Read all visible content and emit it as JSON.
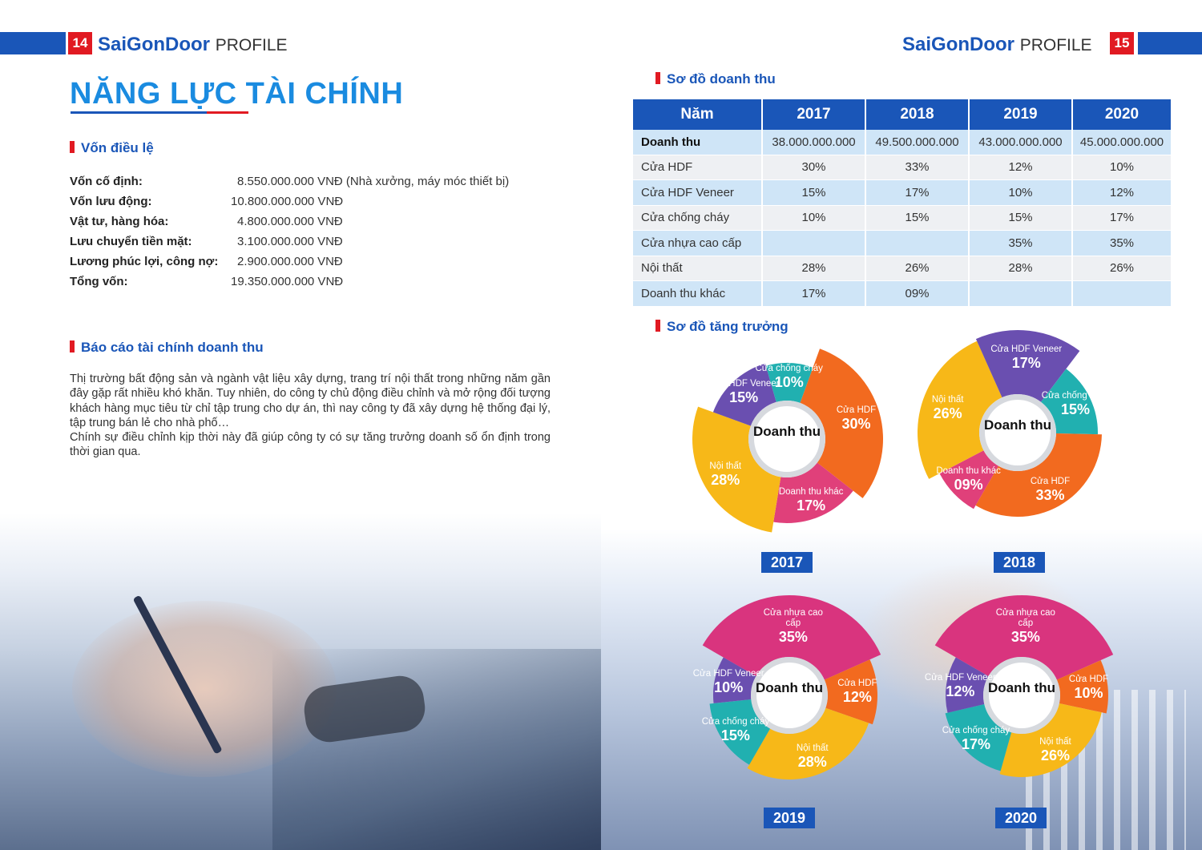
{
  "header": {
    "left_page_num": "14",
    "right_page_num": "15",
    "brand_name": "SaiGonDoor",
    "brand_suffix": "PROFILE"
  },
  "left": {
    "title": "NĂNG LỰC TÀI CHÍNH",
    "capital": {
      "heading": "Vốn điều lệ",
      "rows": [
        {
          "label": "Vốn cố định:",
          "value": "8.550.000.000 VNĐ (Nhà xưởng, máy móc thiết bị)"
        },
        {
          "label": "Vốn lưu động:",
          "value": "10.800.000.000 VNĐ"
        },
        {
          "label": "Vật tư, hàng hóa:",
          "value": "4.800.000.000 VNĐ"
        },
        {
          "label": "Lưu chuyển tiền mặt:",
          "value": "3.100.000.000 VNĐ"
        },
        {
          "label": "Lương phúc lợi, công nợ:",
          "value": "2.900.000.000 VNĐ"
        },
        {
          "label": "Tổng vốn:",
          "value": "19.350.000.000 VNĐ"
        }
      ]
    },
    "report": {
      "heading": "Báo cáo tài chính doanh thu",
      "para1": "Thị trường bất động sản và ngành vật liệu xây dựng, trang trí nội thất trong những năm gần đây gặp rất nhiều khó khăn. Tuy nhiên, do công ty chủ động điều chỉnh và mở rộng đối tượng khách hàng mục tiêu từ chỉ tập trung cho dự án, thì nay công ty đã xây dựng hệ thống đại lý, tập trung bán lẻ cho nhà phố…",
      "para2": "Chính sự điều chỉnh kịp thời này đã giúp công ty có sự tăng trưởng doanh số ổn định trong thời gian qua."
    }
  },
  "right": {
    "table_heading": "Sơ đồ doanh thu",
    "growth_heading": "Sơ đồ tăng trưởng",
    "table": {
      "headers": [
        "Năm",
        "2017",
        "2018",
        "2019",
        "2020"
      ],
      "rows": [
        [
          "Doanh thu",
          "38.000.000.000",
          "49.500.000.000",
          "43.000.000.000",
          "45.000.000.000"
        ],
        [
          "Cửa HDF",
          "30%",
          "33%",
          "12%",
          "10%"
        ],
        [
          "Cửa HDF Veneer",
          "15%",
          "17%",
          "10%",
          "12%"
        ],
        [
          "Cửa chống cháy",
          "10%",
          "15%",
          "15%",
          "17%"
        ],
        [
          "Cửa nhựa cao cấp",
          "",
          "",
          "35%",
          "35%"
        ],
        [
          "Nội thất",
          "28%",
          "26%",
          "28%",
          "26%"
        ],
        [
          "Doanh thu khác",
          "17%",
          "09%",
          "",
          ""
        ]
      ]
    }
  },
  "colors": {
    "brand_blue": "#1a56b8",
    "accent_red": "#e11a22",
    "title_blue": "#1a8be0",
    "orange": "#f26a1f",
    "yellow": "#f9b e1a",
    "pink": "#e0407a",
    "purple": "#6a4fb0",
    "teal": "#21b0b0"
  },
  "chart_data": [
    {
      "type": "pie",
      "year": "2017",
      "center": "Doanh thu",
      "slices": [
        {
          "name": "Cửa HDF",
          "value": 30,
          "label": "30%"
        },
        {
          "name": "Doanh thu khác",
          "value": 17,
          "label": "17%"
        },
        {
          "name": "Nội thất",
          "value": 28,
          "label": "28%"
        },
        {
          "name": "Cửa HDF Veneer",
          "value": 15,
          "label": "15%"
        },
        {
          "name": "Cửa chống cháy",
          "value": 10,
          "label": "10%"
        }
      ]
    },
    {
      "type": "pie",
      "year": "2018",
      "center": "Doanh thu",
      "slices": [
        {
          "name": "Doanh thu khác",
          "value": 9,
          "label": "09%"
        },
        {
          "name": "Nội thất",
          "value": 26,
          "label": "26%"
        },
        {
          "name": "Cửa HDF Veneer",
          "value": 17,
          "label": "17%"
        },
        {
          "name": "Cửa chống cháy",
          "value": 15,
          "label": "15%"
        },
        {
          "name": "Cửa HDF",
          "value": 33,
          "label": "33%"
        }
      ]
    },
    {
      "type": "pie",
      "year": "2019",
      "center": "Doanh thu",
      "slices": [
        {
          "name": "Cửa nhựa cao cấp",
          "value": 35,
          "label": "35%"
        },
        {
          "name": "Cửa HDF",
          "value": 12,
          "label": "12%"
        },
        {
          "name": "Nội thất",
          "value": 28,
          "label": "28%"
        },
        {
          "name": "Cửa chống cháy",
          "value": 15,
          "label": "15%"
        },
        {
          "name": "Cửa HDF Veneer",
          "value": 10,
          "label": "10%"
        }
      ]
    },
    {
      "type": "pie",
      "year": "2020",
      "center": "Doanh thu",
      "slices": [
        {
          "name": "Cửa nhựa cao cấp",
          "value": 35,
          "label": "35%"
        },
        {
          "name": "Cửa HDF",
          "value": 10,
          "label": "10%"
        },
        {
          "name": "Nội thất",
          "value": 26,
          "label": "26%"
        },
        {
          "name": "Cửa chống cháy",
          "value": 17,
          "label": "17%"
        },
        {
          "name": "Cửa HDF Veneer",
          "value": 12,
          "label": "12%"
        }
      ]
    }
  ]
}
